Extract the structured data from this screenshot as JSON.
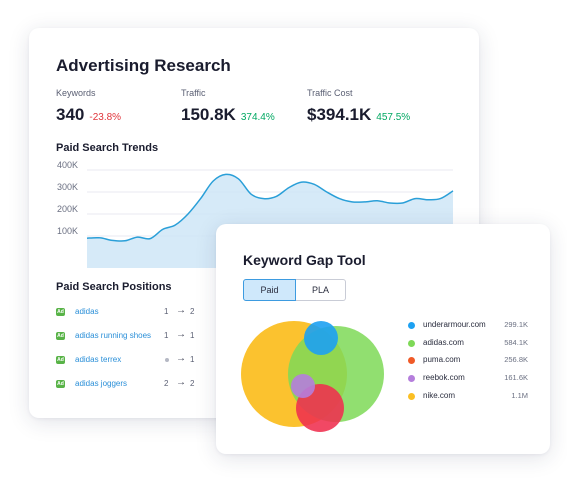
{
  "advertising": {
    "title": "Advertising Research",
    "metrics": [
      {
        "label": "Keywords",
        "value": "340",
        "change": "-23.8%",
        "direction": "negative"
      },
      {
        "label": "Traffic",
        "value": "150.8K",
        "change": "374.4%",
        "direction": "positive"
      },
      {
        "label": "Traffic Cost",
        "value": "$394.1K",
        "change": "457.5%",
        "direction": "positive"
      }
    ],
    "trends_title": "Paid Search Trends",
    "positions_title": "Paid Search Positions",
    "positions": [
      {
        "keyword": "adidas",
        "from": "1",
        "to": "2"
      },
      {
        "keyword": "adidas running shoes",
        "from": "1",
        "to": "1"
      },
      {
        "keyword": "adidas terrex",
        "from": "",
        "to": "1"
      },
      {
        "keyword": "adidas joggers",
        "from": "2",
        "to": "2"
      }
    ],
    "badge_text": "Ad",
    "arrow": "→"
  },
  "chart_data": {
    "type": "area",
    "title": "Paid Search Trends",
    "xlabel": "",
    "ylabel": "",
    "y_ticks": [
      "400K",
      "300K",
      "200K",
      "100K"
    ],
    "ylim": [
      0,
      400000
    ],
    "grid": true,
    "color": "#2a9fd8",
    "fill": "#cfe6f7",
    "values": [
      90000,
      92000,
      80000,
      78000,
      95000,
      88000,
      130000,
      150000,
      200000,
      270000,
      350000,
      380000,
      360000,
      290000,
      270000,
      280000,
      320000,
      345000,
      335000,
      300000,
      270000,
      255000,
      255000,
      260000,
      250000,
      250000,
      270000,
      265000,
      270000,
      305000
    ]
  },
  "gap_tool": {
    "title": "Keyword Gap Tool",
    "tabs": [
      {
        "label": "Paid",
        "active": true
      },
      {
        "label": "PLA",
        "active": false
      }
    ],
    "domains": [
      {
        "name": "underarmour.com",
        "value": "299.1K",
        "color": "#1da1f2"
      },
      {
        "name": "adidas.com",
        "value": "584.1K",
        "color": "#7ed957"
      },
      {
        "name": "puma.com",
        "value": "256.8K",
        "color": "#f05a28"
      },
      {
        "name": "reebok.com",
        "value": "161.6K",
        "color": "#b57edc"
      },
      {
        "name": "nike.com",
        "value": "1.1M",
        "color": "#fbbf24"
      }
    ]
  }
}
